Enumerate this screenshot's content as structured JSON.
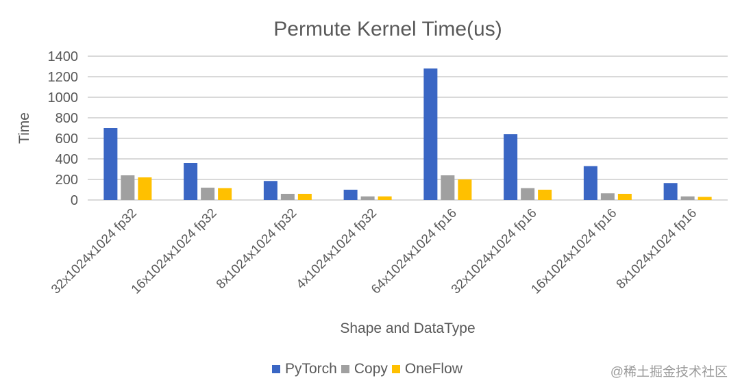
{
  "chart_data": {
    "type": "bar",
    "title": "Permute Kernel Time(us)",
    "xlabel": "Shape and DataType",
    "ylabel": "Time",
    "ylim": [
      0,
      1400
    ],
    "yticks": [
      0,
      200,
      400,
      600,
      800,
      1000,
      1200,
      1400
    ],
    "grid": true,
    "legend_position": "bottom",
    "categories": [
      "32x1024x1024 fp32",
      "16x1024x1024 fp32",
      "8x1024x1024 fp32",
      "4x1024x1024 fp32",
      "64x1024x1024 fp16",
      "32x1024x1024 fp16",
      "16x1024x1024 fp16",
      "8x1024x1024 fp16"
    ],
    "series": [
      {
        "name": "PyTorch",
        "color": "#3a66c4",
        "values": [
          700,
          360,
          185,
          100,
          1280,
          640,
          330,
          165
        ]
      },
      {
        "name": "Copy",
        "color": "#a0a0a0",
        "values": [
          240,
          120,
          60,
          35,
          240,
          115,
          65,
          35
        ]
      },
      {
        "name": "OneFlow",
        "color": "#ffc000",
        "values": [
          220,
          115,
          60,
          35,
          200,
          100,
          60,
          30
        ]
      }
    ]
  },
  "watermark": "@稀土掘金技术社区"
}
